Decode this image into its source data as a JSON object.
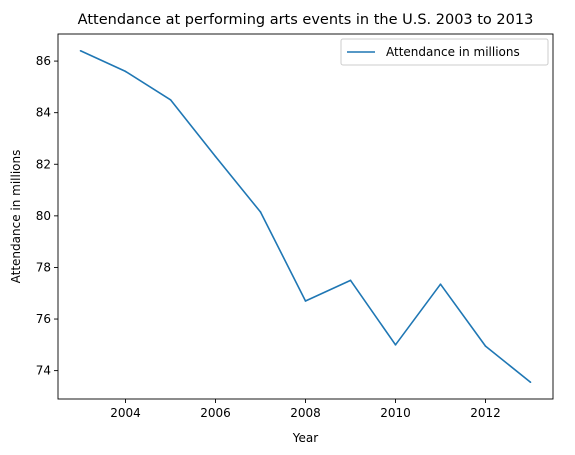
{
  "chart_data": {
    "type": "line",
    "title": "Attendance at performing arts events in the U.S. 2003 to 2013",
    "xlabel": "Year",
    "ylabel": "Attendance in millions",
    "x": [
      2003,
      2004,
      2005,
      2006,
      2007,
      2008,
      2009,
      2010,
      2011,
      2012,
      2013
    ],
    "series": [
      {
        "name": "Attendance in millions",
        "color": "#1f77b4",
        "values": [
          86.4,
          85.6,
          84.5,
          82.3,
          80.15,
          76.7,
          77.5,
          75.0,
          77.35,
          74.95,
          73.55
        ]
      }
    ],
    "xlim": [
      2002.5,
      2013.5
    ],
    "ylim": [
      72.9,
      87.05
    ],
    "xticks": [
      2004,
      2006,
      2008,
      2010,
      2012
    ],
    "yticks": [
      74,
      76,
      78,
      80,
      82,
      84,
      86
    ],
    "grid": false,
    "legend_position": "top-right"
  }
}
